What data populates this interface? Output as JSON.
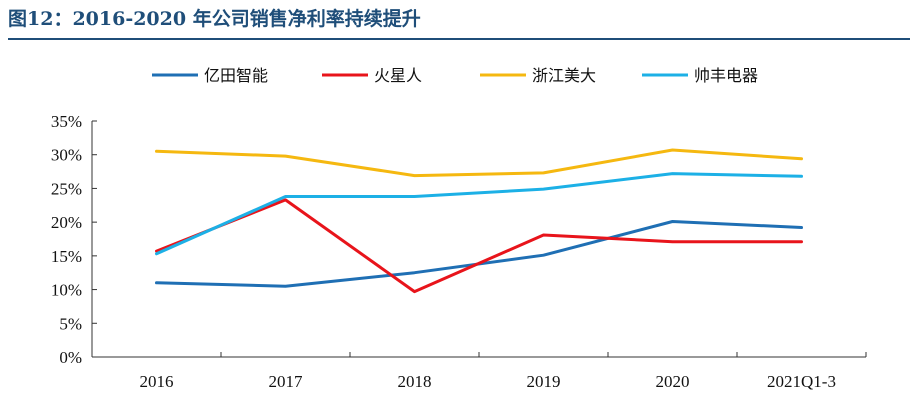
{
  "figure": {
    "title": "图12：2016-2020 年公司销售净利率持续提升"
  },
  "colors": {
    "title": "#1f4e79",
    "axis": "#333333"
  },
  "chart_data": {
    "type": "line",
    "categories": [
      "2016",
      "2017",
      "2018",
      "2019",
      "2020",
      "2021Q1-3"
    ],
    "ylim": [
      0,
      35
    ],
    "yticks": [
      "0%",
      "5%",
      "10%",
      "15%",
      "20%",
      "25%",
      "30%",
      "35%"
    ],
    "ytick_values": [
      0,
      5,
      10,
      15,
      20,
      25,
      30,
      35
    ],
    "xlabel": "",
    "ylabel": "",
    "grid": false,
    "legend_position": "top",
    "series": [
      {
        "name": "亿田智能",
        "color": "#1f6fb4",
        "values": [
          11.0,
          10.5,
          12.5,
          15.1,
          20.1,
          19.2
        ]
      },
      {
        "name": "火星人",
        "color": "#e8141b",
        "values": [
          15.7,
          23.3,
          9.7,
          18.1,
          17.1,
          17.1
        ]
      },
      {
        "name": "浙江美大",
        "color": "#f5b810",
        "values": [
          30.5,
          29.8,
          26.9,
          27.3,
          30.7,
          29.4
        ]
      },
      {
        "name": "帅丰电器",
        "color": "#1cb0e6",
        "values": [
          15.3,
          23.8,
          23.8,
          24.9,
          27.2,
          26.8
        ]
      }
    ]
  }
}
